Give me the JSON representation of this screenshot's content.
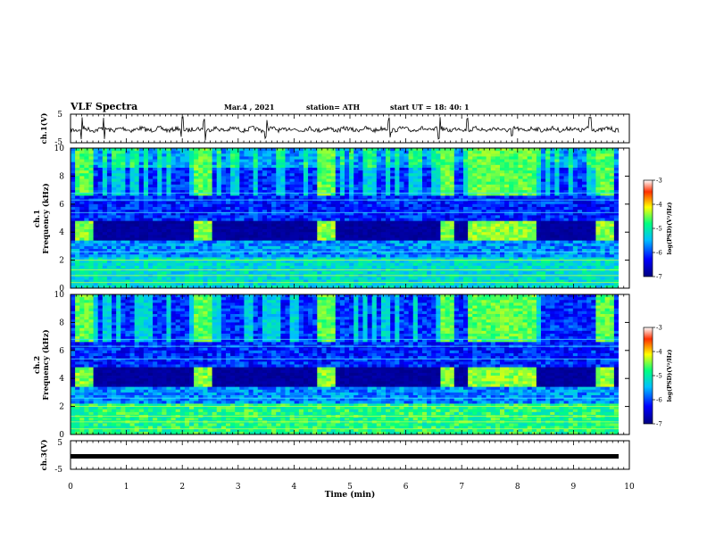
{
  "header": {
    "title": "VLF Spectra",
    "date": "Mar.4 , 2021",
    "station": "station= ATH",
    "start": "start UT =  18: 40: 1"
  },
  "colorbar": {
    "label": "log(PSD)(V²/Hz)",
    "ticks": [
      "-3",
      "-4",
      "-5",
      "-6",
      "-7"
    ],
    "stops": [
      "#00007f",
      "#0000ff",
      "#00bfff",
      "#00ff80",
      "#ffff00",
      "#ff3000",
      "#ffffff"
    ]
  },
  "chart_data": [
    {
      "type": "line",
      "name": "ch1-voltage",
      "ylabel": "ch.1(V)",
      "ylim": [
        -5,
        5
      ],
      "yticks": [
        "5",
        "-5"
      ],
      "xlim": [
        0,
        10
      ],
      "description": "waveform near 0 V with small noise and occasional spikes",
      "spike_times_min": [
        0.2,
        0.6,
        2.0,
        2.4,
        3.5,
        5.7,
        6.6,
        7.1,
        7.9,
        9.3
      ]
    },
    {
      "type": "heatmap",
      "name": "ch1-spectrogram",
      "ylabel": "ch.1\nFrequency (kHz)",
      "ylim": [
        0,
        10
      ],
      "yticks": [
        "0",
        "2",
        "4",
        "6",
        "8",
        "10"
      ],
      "xlim": [
        0,
        10
      ],
      "zlabel": "log(PSD)(V²/Hz)",
      "zlim": [
        -7,
        -3
      ],
      "bright_intervals_min": [
        [
          0.1,
          0.4
        ],
        [
          2.2,
          2.5
        ],
        [
          4.4,
          4.7
        ],
        [
          6.6,
          6.9
        ],
        [
          7.1,
          8.3
        ],
        [
          9.4,
          9.7
        ]
      ],
      "dark_band_khz": [
        3.5,
        4.7
      ]
    },
    {
      "type": "heatmap",
      "name": "ch2-spectrogram",
      "ylabel": "ch.2\nFrequency (kHz)",
      "ylim": [
        0,
        10
      ],
      "yticks": [
        "0",
        "2",
        "4",
        "6",
        "8",
        "10"
      ],
      "xlim": [
        0,
        10
      ],
      "zlabel": "log(PSD)(V²/Hz)",
      "zlim": [
        -7,
        -3
      ],
      "bright_intervals_min": [
        [
          0.1,
          0.4
        ],
        [
          2.2,
          2.5
        ],
        [
          4.4,
          4.7
        ],
        [
          6.6,
          6.9
        ],
        [
          7.1,
          8.3
        ],
        [
          9.4,
          9.7
        ]
      ],
      "dark_band_khz": [
        3.5,
        4.7
      ]
    },
    {
      "type": "line",
      "name": "ch3-voltage",
      "ylabel": "ch.3(V)",
      "ylim": [
        -5,
        5
      ],
      "yticks": [
        "5",
        "-5"
      ],
      "xlim": [
        0,
        9.8
      ],
      "description": "flat line near 0 V",
      "value": 0
    }
  ],
  "xaxis": {
    "label": "Time (min)",
    "ticks": [
      "0",
      "1",
      "2",
      "3",
      "4",
      "5",
      "6",
      "7",
      "8",
      "9",
      "10"
    ]
  }
}
